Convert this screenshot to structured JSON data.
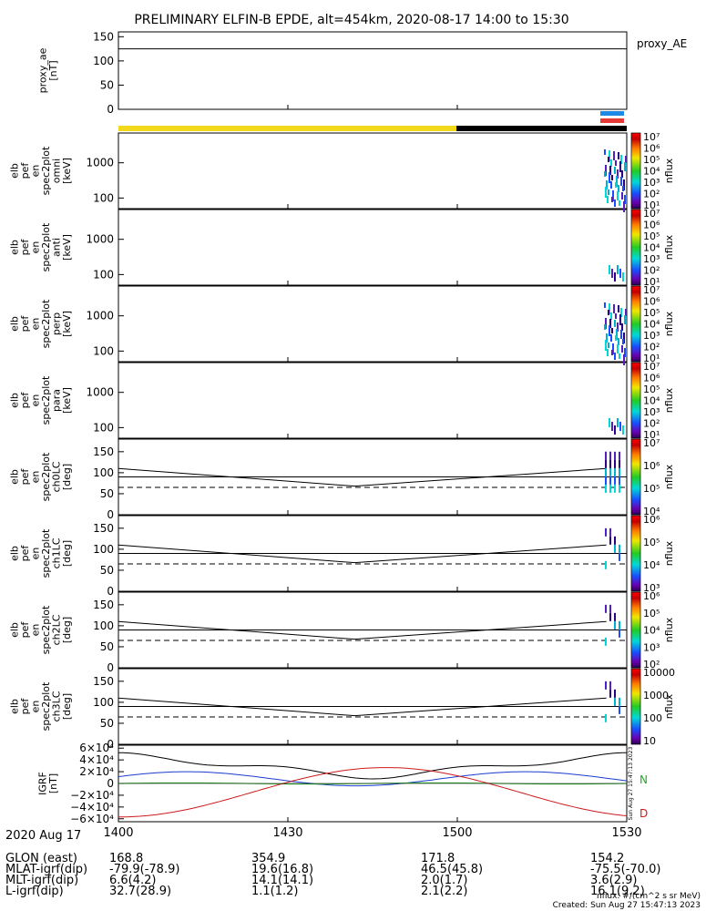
{
  "title": "PRELIMINARY ELFIN-B EPDE, alt=454km, 2020-08-17 14:00 to 15:30",
  "colors": {
    "yellow": "#f2d81a",
    "blue_bar": "#1e88e5",
    "red_bar": "#e53935",
    "black": "#000000"
  },
  "chart_data": [
    {
      "type": "line",
      "name": "proxy_ae",
      "ylabel_lines": [
        "proxy_ae",
        "[nT]"
      ],
      "legend": "proxy_AE",
      "ylim": [
        0,
        160
      ],
      "yticks": [
        "150",
        "100",
        "50",
        "0"
      ],
      "ytick_values": [
        150,
        100,
        50,
        0
      ],
      "series": [
        {
          "values": [
            125,
            125
          ]
        }
      ]
    },
    {
      "type": "heatmap",
      "ylabel_lines": [
        "elb",
        "pef",
        "en",
        "spec2plot",
        "omni",
        "[keV]"
      ],
      "yscale": "log",
      "ylim": [
        50,
        7000
      ],
      "yticks": [
        "1000",
        "100"
      ],
      "colorbar": {
        "label": "nflux",
        "ticks": [
          "10⁷",
          "10⁶",
          "10⁵",
          "10⁴",
          "10³",
          "10²",
          "10¹"
        ]
      }
    },
    {
      "type": "heatmap",
      "ylabel_lines": [
        "elb",
        "pef",
        "en",
        "spec2plot",
        "anti",
        "[keV]"
      ],
      "yscale": "log",
      "ylim": [
        50,
        7000
      ],
      "yticks": [
        "1000",
        "100"
      ],
      "colorbar": {
        "label": "nflux",
        "ticks": [
          "10⁷",
          "10⁶",
          "10⁵",
          "10⁴",
          "10³",
          "10²",
          "10¹"
        ]
      }
    },
    {
      "type": "heatmap",
      "ylabel_lines": [
        "elb",
        "pef",
        "en",
        "spec2plot",
        "perp",
        "[keV]"
      ],
      "yscale": "log",
      "ylim": [
        50,
        7000
      ],
      "yticks": [
        "1000",
        "100"
      ],
      "colorbar": {
        "label": "nflux",
        "ticks": [
          "10⁷",
          "10⁶",
          "10⁵",
          "10⁴",
          "10³",
          "10²",
          "10¹"
        ]
      }
    },
    {
      "type": "heatmap",
      "ylabel_lines": [
        "elb",
        "pef",
        "en",
        "spec2plot",
        "para",
        "[keV]"
      ],
      "yscale": "log",
      "ylim": [
        50,
        7000
      ],
      "yticks": [
        "1000",
        "100"
      ],
      "colorbar": {
        "label": "nflux",
        "ticks": [
          "10⁷",
          "10⁶",
          "10⁵",
          "10⁴",
          "10³",
          "10²",
          "10¹"
        ]
      }
    },
    {
      "type": "heatmap",
      "ylabel_lines": [
        "elb",
        "pef",
        "en",
        "spec2plot",
        "ch0LC",
        "[deg]"
      ],
      "ylim": [
        0,
        180
      ],
      "yticks": [
        "150",
        "100",
        "50",
        "0"
      ],
      "ytick_values": [
        150,
        100,
        50,
        0
      ],
      "colorbar": {
        "label": "nflux",
        "ticks": [
          "10⁷",
          "10⁶",
          "10⁵",
          "10⁴"
        ]
      }
    },
    {
      "type": "heatmap",
      "ylabel_lines": [
        "elb",
        "pef",
        "en",
        "spec2plot",
        "ch1LC",
        "[deg]"
      ],
      "ylim": [
        0,
        180
      ],
      "yticks": [
        "150",
        "100",
        "50",
        "0"
      ],
      "ytick_values": [
        150,
        100,
        50,
        0
      ],
      "colorbar": {
        "label": "nflux",
        "ticks": [
          "10⁶",
          "10⁵",
          "10⁴",
          "10³"
        ]
      }
    },
    {
      "type": "heatmap",
      "ylabel_lines": [
        "elb",
        "pef",
        "en",
        "spec2plot",
        "ch2LC",
        "[deg]"
      ],
      "ylim": [
        0,
        180
      ],
      "yticks": [
        "150",
        "100",
        "50",
        "0"
      ],
      "ytick_values": [
        150,
        100,
        50,
        0
      ],
      "colorbar": {
        "label": "nflux",
        "ticks": [
          "10⁶",
          "10⁵",
          "10⁴",
          "10³",
          "10²"
        ]
      }
    },
    {
      "type": "heatmap",
      "ylabel_lines": [
        "elb",
        "pef",
        "en",
        "spec2plot",
        "ch3LC",
        "[deg]"
      ],
      "ylim": [
        0,
        180
      ],
      "yticks": [
        "150",
        "100",
        "50",
        "0"
      ],
      "ytick_values": [
        150,
        100,
        50,
        0
      ],
      "colorbar": {
        "label": "nflux",
        "ticks": [
          "10000",
          "1000",
          "100",
          "10"
        ]
      }
    },
    {
      "type": "line",
      "ylabel_lines": [
        "IGRF",
        "[nT]"
      ],
      "ylim": [
        -65000,
        65000
      ],
      "yticks": [
        "6×10⁴",
        "4×10⁴",
        "2×10⁴",
        "0",
        "−2×10⁴",
        "−4×10⁴",
        "−6×10⁴"
      ],
      "ytick_values": [
        60000,
        40000,
        20000,
        0,
        -20000,
        -40000,
        -60000
      ],
      "legend": [
        "N",
        "D"
      ],
      "side_label": "Sun Aug 27 15:47:13 2023"
    }
  ],
  "xaxis": {
    "ticks": [
      "1400",
      "1430",
      "1500",
      "1530"
    ]
  },
  "bottom": {
    "rows": [
      {
        "label": "2020 Aug 17",
        "v": [
          "1400",
          "1430",
          "1500",
          "1530"
        ]
      },
      {
        "label": "GLON (east)",
        "v": [
          "168.8",
          "354.9",
          "171.8",
          "154.2"
        ]
      },
      {
        "label": "MLAT-igrf(dip)",
        "v": [
          "-79.9(-78.9)",
          "19.6(16.8)",
          "46.5(45.8)",
          "-75.5(-70.0)"
        ]
      },
      {
        "label": "MLT-igrf(dip)",
        "v": [
          "6.6(4.2)",
          "14.1(14.1)",
          "2.0(1.7)",
          "3.6(2.9)"
        ]
      },
      {
        "label": "L-igrf(dip)",
        "v": [
          "32.7(28.9)",
          "1.1(1.2)",
          "2.1(2.2)",
          "16.1(9.2)"
        ]
      }
    ],
    "units": "nflux: #/(cm^2 s sr MeV)",
    "created": "Created: Sun Aug 27 15:47:13 2023"
  }
}
